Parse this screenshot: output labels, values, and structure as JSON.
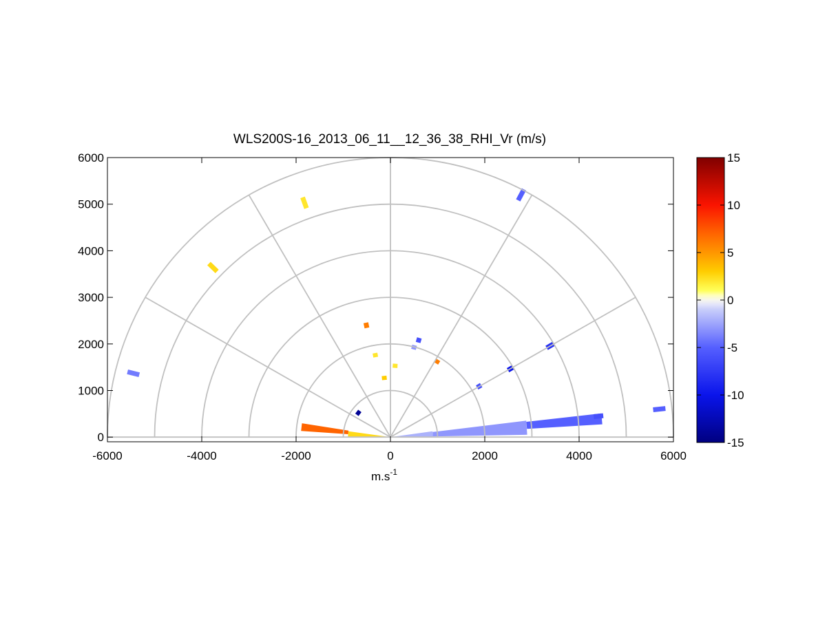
{
  "chart_data": {
    "type": "heatmap",
    "title": "WLS200S-16_2013_06_11__12_36_38_RHI_Vr (m/s)",
    "xlabel": "m.s",
    "xlabel_superscript": "-1",
    "ylabel": "",
    "xlim": [
      -6000,
      6000
    ],
    "ylim": [
      -100,
      6000
    ],
    "xticks": [
      -6000,
      -4000,
      -2000,
      0,
      2000,
      4000,
      6000
    ],
    "xtick_labels": [
      "-6000",
      "-4000",
      "-2000",
      "0",
      "2000",
      "4000",
      "6000"
    ],
    "yticks": [
      0,
      1000,
      2000,
      3000,
      4000,
      5000,
      6000
    ],
    "ytick_labels": [
      "0",
      "1000",
      "2000",
      "3000",
      "4000",
      "5000",
      "6000"
    ],
    "grid": true,
    "polar_grid": {
      "ring_radii": [
        1000,
        2000,
        3000,
        4000,
        5000,
        6000
      ],
      "spoke_angles_deg": [
        0,
        30,
        60,
        90,
        120,
        150,
        180
      ]
    },
    "colorbar": {
      "range": [
        -15,
        15
      ],
      "ticks": [
        15,
        10,
        5,
        0,
        -5,
        -10,
        -15
      ],
      "tick_labels": [
        "15",
        "10",
        "5",
        "0",
        "-5",
        "-10",
        "-15"
      ]
    },
    "scans": [
      {
        "sector": "near-ground west",
        "az_start": 172,
        "az_end": 180,
        "r_start": 0,
        "r_end": 900,
        "value": 2.5
      },
      {
        "sector": "near-ground west",
        "az_start": 171,
        "az_end": 176,
        "r_start": 900,
        "r_end": 1900,
        "value": 7
      },
      {
        "sector": "near-ground east",
        "az_start": 0,
        "az_end": 8,
        "r_start": 0,
        "r_end": 900,
        "value": -2
      },
      {
        "sector": "near-ground east",
        "az_start": 1,
        "az_end": 7,
        "r_start": 900,
        "r_end": 2900,
        "value": -3
      },
      {
        "sector": "near-ground east",
        "az_start": 3.5,
        "az_end": 6.5,
        "r_start": 2900,
        "r_end": 4500,
        "value": -5
      },
      {
        "sector": "isolated",
        "x": -5450,
        "y": 1370,
        "value": -4
      },
      {
        "sector": "isolated",
        "x": -3760,
        "y": 3640,
        "value": 2.5
      },
      {
        "sector": "isolated",
        "x": -1820,
        "y": 5030,
        "value": 2
      },
      {
        "sector": "isolated",
        "x": 2770,
        "y": 5200,
        "value": -5
      },
      {
        "sector": "isolated",
        "x": 5700,
        "y": 600,
        "value": -5
      },
      {
        "sector": "isolated",
        "x": 4410,
        "y": 450,
        "value": -6
      },
      {
        "sector": "isolated",
        "x": 3390,
        "y": 1960,
        "value": -8
      },
      {
        "sector": "isolated",
        "x": 2550,
        "y": 1470,
        "value": -10
      },
      {
        "sector": "isolated",
        "x": 1880,
        "y": 1090,
        "value": -6
      },
      {
        "sector": "isolated",
        "x": -510,
        "y": 2400,
        "value": 6
      },
      {
        "sector": "isolated",
        "x": 600,
        "y": 2080,
        "value": -6
      },
      {
        "sector": "isolated",
        "x": 500,
        "y": 1930,
        "value": -3
      },
      {
        "sector": "isolated",
        "x": -320,
        "y": 1760,
        "value": 2
      },
      {
        "sector": "isolated",
        "x": 100,
        "y": 1530,
        "value": 2
      },
      {
        "sector": "isolated",
        "x": -130,
        "y": 1270,
        "value": 3
      },
      {
        "sector": "isolated",
        "x": 990,
        "y": 1620,
        "value": 6
      },
      {
        "sector": "isolated",
        "x": -680,
        "y": 520,
        "value": -14
      }
    ]
  }
}
